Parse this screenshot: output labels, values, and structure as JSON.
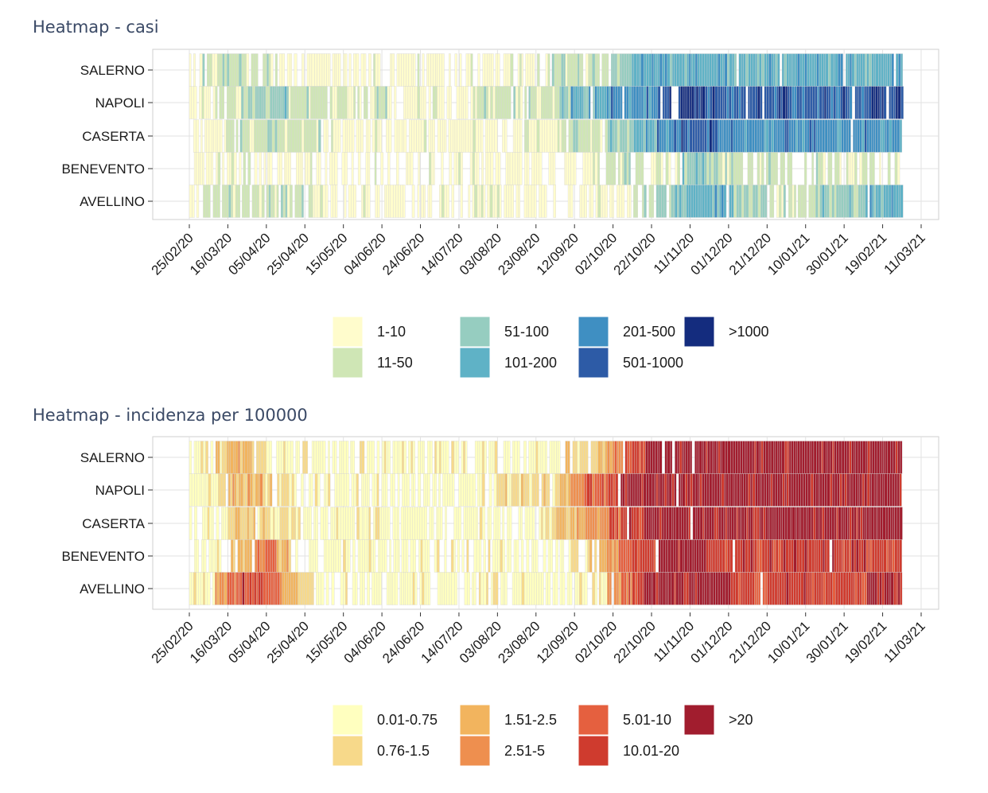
{
  "chart_data": [
    {
      "type": "heatmap",
      "title": "Heatmap - casi",
      "rows": [
        "SALERNO",
        "NAPOLI",
        "CASERTA",
        "BENEVENTO",
        "AVELLINO"
      ],
      "x_ticks": [
        "25/02/20",
        "16/03/20",
        "05/04/20",
        "25/04/20",
        "15/05/20",
        "04/06/20",
        "24/06/20",
        "14/07/20",
        "03/08/20",
        "23/08/20",
        "12/09/20",
        "02/10/20",
        "22/10/20",
        "11/11/20",
        "01/12/20",
        "21/12/20",
        "10/01/21",
        "30/01/21",
        "19/02/21",
        "11/03/21"
      ],
      "x_range": [
        "25/02/20",
        "11/03/21"
      ],
      "grid": true,
      "legend_position": "bottom",
      "legend": [
        {
          "label": "1-10",
          "color": "#fffccc"
        },
        {
          "label": "11-50",
          "color": "#cfe6b5"
        },
        {
          "label": "51-100",
          "color": "#96cdc0"
        },
        {
          "label": "101-200",
          "color": "#5fb2c6"
        },
        {
          "label": "201-500",
          "color": "#3f8fc2"
        },
        {
          "label": "501-1000",
          "color": "#2d5ba6"
        },
        {
          ">1000": ">1000",
          "label": ">1000",
          "color": "#142c7e"
        }
      ],
      "row_profiles": {
        "SALERNO": [
          0,
          1,
          1,
          1,
          1,
          1,
          1,
          0,
          0,
          0,
          0,
          0,
          0,
          0,
          0,
          0,
          0,
          0,
          0,
          0,
          0,
          0,
          0,
          0,
          0,
          0,
          0,
          0,
          0,
          1,
          1,
          1,
          1,
          1,
          2,
          2,
          3,
          3,
          3,
          3,
          3,
          3,
          3,
          3,
          3,
          3,
          3,
          3,
          3,
          3,
          3,
          3,
          3,
          3,
          3,
          3,
          3,
          3
        ],
        "NAPOLI": [
          0,
          0,
          1,
          1,
          2,
          2,
          2,
          2,
          1,
          1,
          1,
          1,
          1,
          1,
          1,
          1,
          0,
          0,
          0,
          0,
          0,
          0,
          0,
          1,
          1,
          1,
          1,
          1,
          1,
          1,
          2,
          3,
          3,
          3,
          4,
          4,
          4,
          4,
          5,
          5,
          6,
          6,
          5,
          5,
          5,
          5,
          5,
          5,
          5,
          5,
          5,
          5,
          5,
          5,
          5,
          6,
          6,
          6
        ],
        "CASERTA": [
          0,
          0,
          0,
          1,
          1,
          1,
          1,
          1,
          1,
          1,
          1,
          0,
          0,
          0,
          0,
          0,
          0,
          0,
          0,
          0,
          0,
          0,
          0,
          0,
          0,
          0,
          0,
          0,
          0,
          0,
          1,
          1,
          1,
          1,
          2,
          2,
          3,
          3,
          4,
          4,
          5,
          5,
          5,
          4,
          4,
          4,
          4,
          4,
          4,
          4,
          4,
          4,
          4,
          4,
          4,
          4,
          4,
          4
        ],
        "BENEVENTO": [
          0,
          0,
          0,
          0,
          0,
          0,
          0,
          0,
          0,
          0,
          0,
          0,
          0,
          0,
          0,
          0,
          0,
          0,
          0,
          0,
          0,
          0,
          0,
          0,
          0,
          0,
          0,
          0,
          0,
          0,
          0,
          0,
          0,
          0,
          1,
          1,
          1,
          1,
          1,
          1,
          2,
          2,
          2,
          1,
          1,
          1,
          1,
          1,
          1,
          1,
          1,
          1,
          1,
          1,
          1,
          1,
          1,
          1
        ],
        "AVELLINO": [
          0,
          1,
          1,
          1,
          1,
          1,
          1,
          1,
          1,
          1,
          0,
          0,
          0,
          0,
          0,
          0,
          0,
          0,
          0,
          0,
          0,
          0,
          0,
          0,
          0,
          0,
          0,
          0,
          0,
          0,
          0,
          0,
          0,
          0,
          0,
          0,
          1,
          1,
          2,
          2,
          3,
          3,
          3,
          3,
          2,
          2,
          2,
          1,
          1,
          1,
          1,
          2,
          2,
          2,
          2,
          3,
          3,
          3
        ]
      },
      "row_coverage": {
        "SALERNO": 0.92,
        "NAPOLI": 0.99,
        "CASERTA": 0.97,
        "BENEVENTO": 0.72,
        "AVELLINO": 0.8
      }
    },
    {
      "type": "heatmap",
      "title": "Heatmap - incidenza per 100000",
      "rows": [
        "SALERNO",
        "NAPOLI",
        "CASERTA",
        "BENEVENTO",
        "AVELLINO"
      ],
      "x_ticks": [
        "25/02/20",
        "16/03/20",
        "05/04/20",
        "25/04/20",
        "15/05/20",
        "04/06/20",
        "24/06/20",
        "14/07/20",
        "03/08/20",
        "23/08/20",
        "12/09/20",
        "02/10/20",
        "22/10/20",
        "11/11/20",
        "01/12/20",
        "21/12/20",
        "10/01/21",
        "30/01/21",
        "19/02/21",
        "11/03/21"
      ],
      "x_range": [
        "25/02/20",
        "11/03/21"
      ],
      "grid": true,
      "legend_position": "bottom",
      "legend": [
        {
          "label": "0.01-0.75",
          "color": "#ffffbf"
        },
        {
          "label": "0.76-1.5",
          "color": "#f7d98a"
        },
        {
          "label": "1.51-2.5",
          "color": "#f2b45e"
        },
        {
          "label": "2.51-5",
          "color": "#ee8f4f"
        },
        {
          "label": "5.01-10",
          "color": "#e5603f"
        },
        {
          "label": "10.01-20",
          "color": "#cf3b2e"
        },
        {
          "label": ">20",
          "color": "#a11d2e"
        }
      ],
      "row_profiles": {
        "SALERNO": [
          0,
          0,
          1,
          2,
          2,
          1,
          1,
          0,
          0,
          0,
          0,
          0,
          0,
          0,
          0,
          0,
          0,
          0,
          0,
          0,
          0,
          0,
          0,
          0,
          0,
          0,
          0,
          0,
          0,
          0,
          1,
          1,
          1,
          2,
          3,
          4,
          5,
          6,
          6,
          6,
          6,
          6,
          6,
          6,
          6,
          6,
          6,
          6,
          6,
          6,
          6,
          6,
          6,
          6,
          6,
          6,
          6,
          6
        ],
        "NAPOLI": [
          0,
          0,
          1,
          2,
          2,
          2,
          1,
          1,
          0,
          0,
          0,
          0,
          0,
          0,
          0,
          0,
          0,
          0,
          0,
          0,
          0,
          0,
          0,
          0,
          0,
          1,
          1,
          1,
          1,
          1,
          2,
          3,
          4,
          4,
          5,
          6,
          6,
          6,
          6,
          6,
          6,
          6,
          6,
          6,
          6,
          6,
          6,
          6,
          6,
          6,
          6,
          6,
          6,
          6,
          6,
          6,
          6,
          6
        ],
        "CASERTA": [
          0,
          0,
          0,
          1,
          1,
          1,
          1,
          1,
          1,
          0,
          0,
          0,
          0,
          0,
          0,
          0,
          0,
          0,
          0,
          0,
          0,
          0,
          0,
          0,
          0,
          0,
          0,
          0,
          0,
          1,
          2,
          2,
          3,
          3,
          4,
          5,
          5,
          6,
          6,
          6,
          6,
          6,
          6,
          6,
          6,
          6,
          6,
          6,
          6,
          6,
          6,
          6,
          6,
          6,
          6,
          6,
          6,
          6
        ],
        "BENEVENTO": [
          0,
          0,
          0,
          1,
          2,
          3,
          4,
          2,
          1,
          0,
          0,
          0,
          0,
          0,
          0,
          0,
          0,
          0,
          0,
          0,
          0,
          0,
          0,
          0,
          0,
          0,
          0,
          0,
          0,
          0,
          0,
          1,
          1,
          2,
          3,
          4,
          5,
          5,
          6,
          6,
          6,
          6,
          5,
          5,
          5,
          5,
          5,
          5,
          5,
          5,
          5,
          5,
          5,
          5,
          5,
          5,
          5,
          5
        ],
        "AVELLINO": [
          0,
          0,
          3,
          4,
          5,
          5,
          4,
          3,
          2,
          1,
          0,
          0,
          0,
          0,
          0,
          0,
          0,
          0,
          0,
          0,
          0,
          0,
          0,
          0,
          0,
          0,
          0,
          0,
          0,
          0,
          0,
          0,
          0,
          0,
          3,
          4,
          5,
          6,
          6,
          6,
          6,
          6,
          6,
          6,
          5,
          5,
          4,
          5,
          5,
          5,
          5,
          5,
          5,
          5,
          5,
          6,
          6,
          6
        ]
      },
      "row_coverage": {
        "SALERNO": 0.92,
        "NAPOLI": 0.99,
        "CASERTA": 0.97,
        "BENEVENTO": 0.72,
        "AVELLINO": 0.8
      }
    }
  ]
}
